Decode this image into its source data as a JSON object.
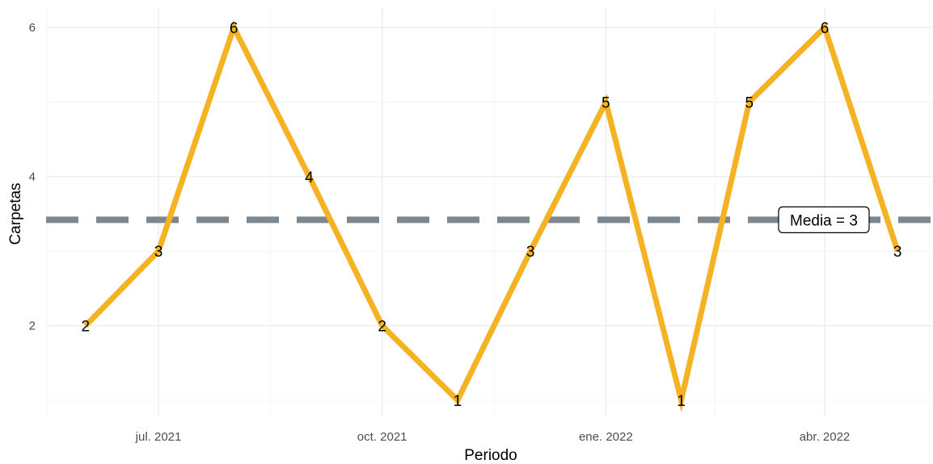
{
  "chart_data": {
    "type": "line",
    "xlabel": "Periodo",
    "ylabel": "Carpetas",
    "x": [
      "2021-06-01",
      "2021-07-01",
      "2021-08-01",
      "2021-09-01",
      "2021-10-01",
      "2021-11-01",
      "2021-12-01",
      "2022-01-01",
      "2022-02-01",
      "2022-03-01",
      "2022-04-01",
      "2022-05-01"
    ],
    "series": [
      {
        "values": [
          2,
          3,
          6,
          4,
          2,
          1,
          3,
          5,
          1,
          5,
          6,
          3
        ],
        "color": "#F5B223"
      }
    ],
    "x_ticks": [
      {
        "date": "2021-07-01",
        "label": "jul. 2021"
      },
      {
        "date": "2021-10-01",
        "label": "oct. 2021"
      },
      {
        "date": "2022-01-01",
        "label": "ene. 2022"
      },
      {
        "date": "2022-04-01",
        "label": "abr. 2022"
      }
    ],
    "y_ticks": [
      2,
      4,
      6
    ],
    "ylim": [
      1,
      6
    ],
    "mean": {
      "value": 3.42,
      "label": "Media = 3",
      "color": "#7D878F"
    },
    "grid": true
  }
}
